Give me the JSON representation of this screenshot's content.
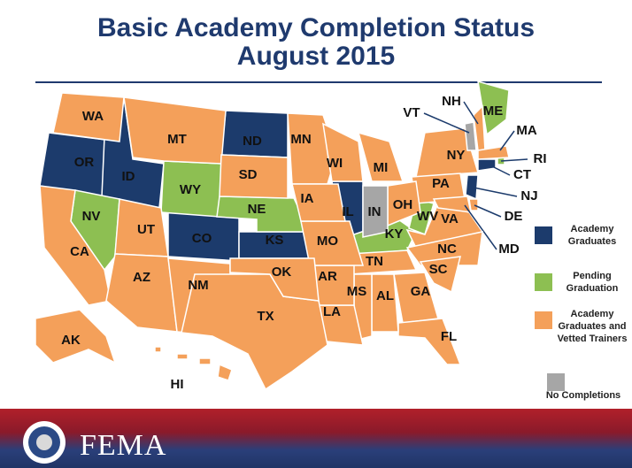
{
  "header": {
    "title": [
      "Basic Academy Completion Status",
      "August 2015"
    ]
  },
  "legend": [
    {
      "label": "Academy Graduates",
      "color": "#1c3b6c",
      "states": [
        "OR",
        "ID",
        "ND",
        "CO",
        "KS",
        "IL",
        "CT",
        "NJ"
      ]
    },
    {
      "label": "Pending Graduation",
      "color": "#8dbf52",
      "states": [
        "WY",
        "NV",
        "NE",
        "KY",
        "WV",
        "ME",
        "RI"
      ]
    },
    {
      "label": "Academy Graduates and Vetted Trainers",
      "color": "#f4a05a",
      "states": [
        "WA",
        "MT",
        "MN",
        "WI",
        "MI",
        "NY",
        "NH",
        "MA",
        "PA",
        "OH",
        "VA",
        "DE",
        "MD",
        "NC",
        "SC",
        "GA",
        "FL",
        "AL",
        "MS",
        "TN",
        "LA",
        "AR",
        "MO",
        "IA",
        "SD",
        "UT",
        "CA",
        "AZ",
        "NM",
        "TX",
        "OK",
        "AK",
        "HI"
      ]
    },
    {
      "label": "No Completions",
      "color": "#a6a6a6",
      "states": [
        "IN",
        "VT"
      ]
    }
  ],
  "footer": {
    "brand": "FEMA"
  }
}
